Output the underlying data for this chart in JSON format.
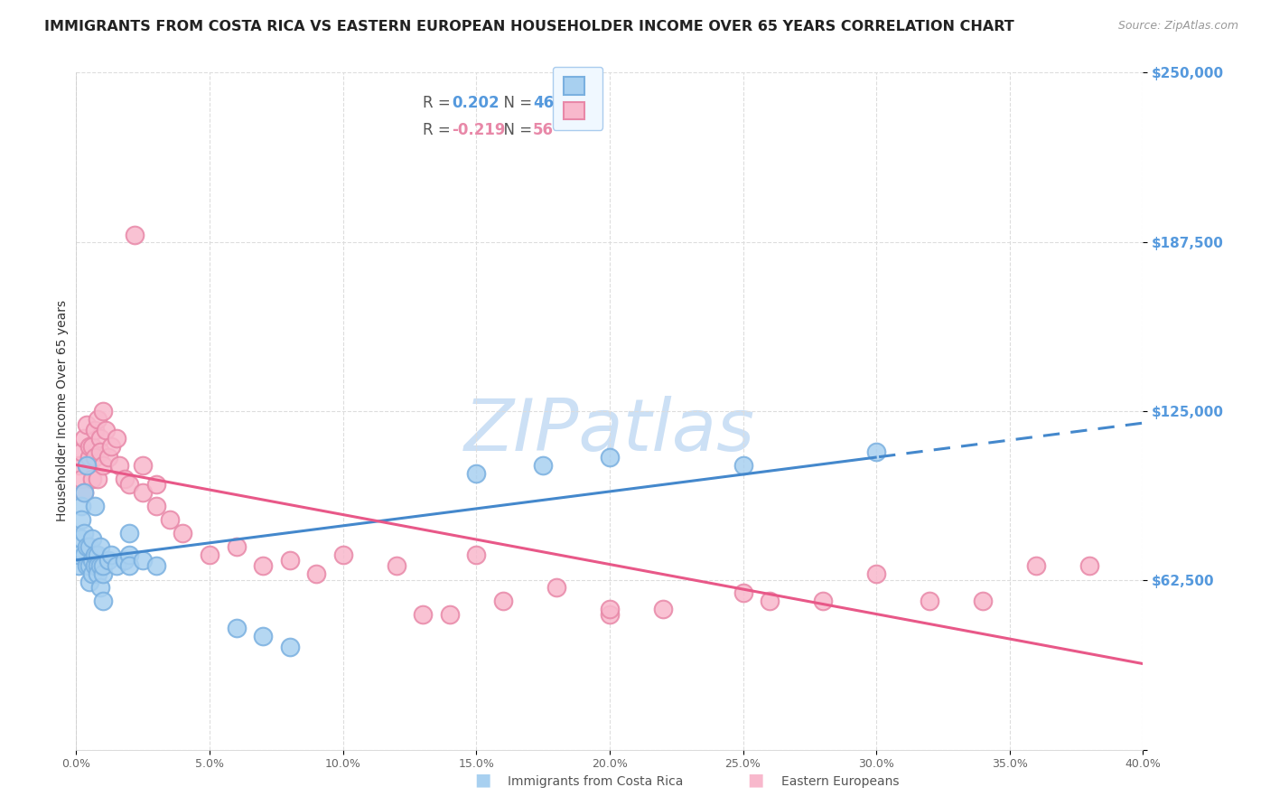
{
  "title": "IMMIGRANTS FROM COSTA RICA VS EASTERN EUROPEAN HOUSEHOLDER INCOME OVER 65 YEARS CORRELATION CHART",
  "source": "Source: ZipAtlas.com",
  "ylabel": "Householder Income Over 65 years",
  "y_ticks": [
    0,
    62500,
    125000,
    187500,
    250000
  ],
  "y_tick_labels": [
    "",
    "$62,500",
    "$125,000",
    "$187,500",
    "$250,000"
  ],
  "x_min": 0.0,
  "x_max": 0.4,
  "y_min": 0,
  "y_max": 250000,
  "watermark": "ZIPatlas",
  "scatter_blue": [
    [
      0.001,
      68000
    ],
    [
      0.001,
      72000
    ],
    [
      0.002,
      90000
    ],
    [
      0.002,
      85000
    ],
    [
      0.002,
      78000
    ],
    [
      0.003,
      95000
    ],
    [
      0.003,
      80000
    ],
    [
      0.003,
      72000
    ],
    [
      0.004,
      105000
    ],
    [
      0.004,
      68000
    ],
    [
      0.004,
      75000
    ],
    [
      0.005,
      75000
    ],
    [
      0.005,
      62000
    ],
    [
      0.005,
      68000
    ],
    [
      0.006,
      70000
    ],
    [
      0.006,
      65000
    ],
    [
      0.006,
      78000
    ],
    [
      0.007,
      68000
    ],
    [
      0.007,
      90000
    ],
    [
      0.007,
      72000
    ],
    [
      0.008,
      72000
    ],
    [
      0.008,
      68000
    ],
    [
      0.008,
      65000
    ],
    [
      0.009,
      75000
    ],
    [
      0.009,
      60000
    ],
    [
      0.009,
      68000
    ],
    [
      0.01,
      65000
    ],
    [
      0.01,
      55000
    ],
    [
      0.01,
      68000
    ],
    [
      0.012,
      70000
    ],
    [
      0.013,
      72000
    ],
    [
      0.015,
      68000
    ],
    [
      0.018,
      70000
    ],
    [
      0.02,
      72000
    ],
    [
      0.02,
      68000
    ],
    [
      0.025,
      70000
    ],
    [
      0.03,
      68000
    ],
    [
      0.06,
      45000
    ],
    [
      0.07,
      42000
    ],
    [
      0.08,
      38000
    ],
    [
      0.15,
      102000
    ],
    [
      0.175,
      105000
    ],
    [
      0.2,
      108000
    ],
    [
      0.25,
      105000
    ],
    [
      0.3,
      110000
    ],
    [
      0.02,
      80000
    ]
  ],
  "scatter_pink": [
    [
      0.001,
      105000
    ],
    [
      0.002,
      110000
    ],
    [
      0.002,
      100000
    ],
    [
      0.003,
      115000
    ],
    [
      0.003,
      95000
    ],
    [
      0.004,
      120000
    ],
    [
      0.004,
      105000
    ],
    [
      0.005,
      108000
    ],
    [
      0.005,
      112000
    ],
    [
      0.006,
      112000
    ],
    [
      0.006,
      100000
    ],
    [
      0.007,
      118000
    ],
    [
      0.007,
      108000
    ],
    [
      0.008,
      122000
    ],
    [
      0.008,
      100000
    ],
    [
      0.009,
      115000
    ],
    [
      0.009,
      110000
    ],
    [
      0.01,
      125000
    ],
    [
      0.01,
      105000
    ],
    [
      0.011,
      118000
    ],
    [
      0.012,
      108000
    ],
    [
      0.013,
      112000
    ],
    [
      0.015,
      115000
    ],
    [
      0.016,
      105000
    ],
    [
      0.018,
      100000
    ],
    [
      0.02,
      98000
    ],
    [
      0.022,
      190000
    ],
    [
      0.025,
      105000
    ],
    [
      0.025,
      95000
    ],
    [
      0.03,
      90000
    ],
    [
      0.03,
      98000
    ],
    [
      0.035,
      85000
    ],
    [
      0.04,
      80000
    ],
    [
      0.05,
      72000
    ],
    [
      0.06,
      75000
    ],
    [
      0.07,
      68000
    ],
    [
      0.08,
      70000
    ],
    [
      0.09,
      65000
    ],
    [
      0.1,
      72000
    ],
    [
      0.12,
      68000
    ],
    [
      0.13,
      50000
    ],
    [
      0.14,
      50000
    ],
    [
      0.15,
      72000
    ],
    [
      0.16,
      55000
    ],
    [
      0.18,
      60000
    ],
    [
      0.2,
      50000
    ],
    [
      0.2,
      52000
    ],
    [
      0.22,
      52000
    ],
    [
      0.25,
      58000
    ],
    [
      0.26,
      55000
    ],
    [
      0.28,
      55000
    ],
    [
      0.3,
      65000
    ],
    [
      0.32,
      55000
    ],
    [
      0.34,
      55000
    ],
    [
      0.36,
      68000
    ],
    [
      0.38,
      68000
    ]
  ],
  "blue_color": "#a8d0f0",
  "blue_edge": "#7ab0e0",
  "pink_color": "#f8b8cc",
  "pink_edge": "#e888a8",
  "regression_blue_color": "#4488cc",
  "regression_pink_color": "#e85888",
  "axis_tick_color": "#5599dd",
  "grid_color": "#dddddd",
  "background_color": "#ffffff",
  "title_color": "#222222",
  "title_fontsize": 11.5,
  "source_fontsize": 9,
  "ylabel_fontsize": 10,
  "watermark_color": "#cce0f5",
  "watermark_fontsize": 58,
  "legend_bg": "#f0f8ff",
  "legend_border": "#aaccee"
}
